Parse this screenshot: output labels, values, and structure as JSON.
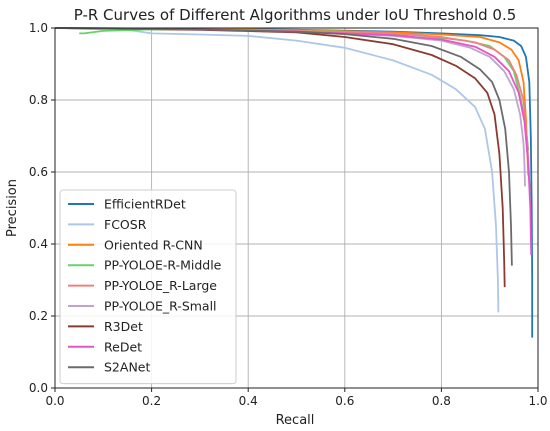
{
  "chart_data": {
    "type": "line",
    "title": "P-R Curves of Different Algorithms under IoU Threshold 0.5",
    "xlabel": "Recall",
    "ylabel": "Precision",
    "xlim": [
      0.0,
      1.0
    ],
    "ylim": [
      0.0,
      1.0
    ],
    "xticks": [
      "0.0",
      "0.2",
      "0.4",
      "0.6",
      "0.8",
      "1.0"
    ],
    "yticks": [
      "0.0",
      "0.2",
      "0.4",
      "0.6",
      "0.8",
      "1.0"
    ],
    "grid": true,
    "legend_position": "lower-left",
    "series": [
      {
        "name": "EfficientRDet",
        "color": "#1f77b4",
        "points": [
          [
            0.0,
            1.0
          ],
          [
            0.3,
            0.998
          ],
          [
            0.5,
            0.995
          ],
          [
            0.7,
            0.99
          ],
          [
            0.8,
            0.985
          ],
          [
            0.88,
            0.98
          ],
          [
            0.92,
            0.975
          ],
          [
            0.95,
            0.965
          ],
          [
            0.965,
            0.95
          ],
          [
            0.975,
            0.92
          ],
          [
            0.982,
            0.85
          ],
          [
            0.985,
            0.7
          ],
          [
            0.987,
            0.5
          ],
          [
            0.988,
            0.3
          ],
          [
            0.988,
            0.14
          ]
        ]
      },
      {
        "name": "FCOSR",
        "color": "#aec7e8",
        "points": [
          [
            0.0,
            1.0
          ],
          [
            0.15,
            0.995
          ],
          [
            0.2,
            0.985
          ],
          [
            0.3,
            0.982
          ],
          [
            0.4,
            0.978
          ],
          [
            0.5,
            0.965
          ],
          [
            0.6,
            0.945
          ],
          [
            0.7,
            0.91
          ],
          [
            0.78,
            0.87
          ],
          [
            0.83,
            0.83
          ],
          [
            0.87,
            0.78
          ],
          [
            0.89,
            0.72
          ],
          [
            0.905,
            0.6
          ],
          [
            0.913,
            0.45
          ],
          [
            0.917,
            0.3
          ],
          [
            0.918,
            0.21
          ]
        ]
      },
      {
        "name": "Oriented R-CNN",
        "color": "#ff7f0e",
        "points": [
          [
            0.0,
            1.0
          ],
          [
            0.3,
            0.998
          ],
          [
            0.5,
            0.994
          ],
          [
            0.7,
            0.988
          ],
          [
            0.8,
            0.982
          ],
          [
            0.88,
            0.975
          ],
          [
            0.92,
            0.96
          ],
          [
            0.945,
            0.94
          ],
          [
            0.96,
            0.91
          ],
          [
            0.97,
            0.85
          ],
          [
            0.975,
            0.75
          ],
          [
            0.978,
            0.65
          ],
          [
            0.98,
            0.59
          ]
        ]
      },
      {
        "name": "PP-YOLOE-R-Middle",
        "color": "#66d36a",
        "points": [
          [
            0.05,
            0.985
          ],
          [
            0.06,
            0.985
          ],
          [
            0.1,
            0.992
          ],
          [
            0.2,
            0.996
          ],
          [
            0.4,
            0.995
          ],
          [
            0.6,
            0.99
          ],
          [
            0.75,
            0.98
          ],
          [
            0.85,
            0.965
          ],
          [
            0.9,
            0.95
          ],
          [
            0.93,
            0.92
          ],
          [
            0.95,
            0.88
          ],
          [
            0.965,
            0.8
          ],
          [
            0.975,
            0.72
          ],
          [
            0.98,
            0.66
          ]
        ]
      },
      {
        "name": "PP-YOLOE_R-Large",
        "color": "#f08080",
        "points": [
          [
            0.0,
            1.0
          ],
          [
            0.3,
            0.997
          ],
          [
            0.5,
            0.992
          ],
          [
            0.7,
            0.985
          ],
          [
            0.8,
            0.975
          ],
          [
            0.87,
            0.96
          ],
          [
            0.91,
            0.94
          ],
          [
            0.94,
            0.91
          ],
          [
            0.955,
            0.87
          ],
          [
            0.97,
            0.8
          ],
          [
            0.978,
            0.68
          ],
          [
            0.983,
            0.55
          ]
        ]
      },
      {
        "name": "PP-YOLOE_R-Small",
        "color": "#c0a4cf",
        "points": [
          [
            0.0,
            1.0
          ],
          [
            0.3,
            0.996
          ],
          [
            0.5,
            0.99
          ],
          [
            0.7,
            0.978
          ],
          [
            0.8,
            0.965
          ],
          [
            0.86,
            0.945
          ],
          [
            0.9,
            0.92
          ],
          [
            0.93,
            0.88
          ],
          [
            0.95,
            0.83
          ],
          [
            0.963,
            0.76
          ],
          [
            0.97,
            0.68
          ],
          [
            0.972,
            0.62
          ],
          [
            0.973,
            0.56
          ]
        ]
      },
      {
        "name": "R3Det",
        "color": "#8b3a30",
        "points": [
          [
            0.0,
            1.0
          ],
          [
            0.3,
            0.995
          ],
          [
            0.5,
            0.988
          ],
          [
            0.6,
            0.975
          ],
          [
            0.7,
            0.955
          ],
          [
            0.78,
            0.925
          ],
          [
            0.83,
            0.895
          ],
          [
            0.87,
            0.86
          ],
          [
            0.895,
            0.82
          ],
          [
            0.91,
            0.76
          ],
          [
            0.92,
            0.65
          ],
          [
            0.927,
            0.5
          ],
          [
            0.93,
            0.35
          ],
          [
            0.931,
            0.28
          ]
        ]
      },
      {
        "name": "ReDet",
        "color": "#e754c8",
        "points": [
          [
            0.0,
            1.0
          ],
          [
            0.3,
            0.996
          ],
          [
            0.5,
            0.99
          ],
          [
            0.7,
            0.98
          ],
          [
            0.8,
            0.968
          ],
          [
            0.87,
            0.948
          ],
          [
            0.91,
            0.92
          ],
          [
            0.94,
            0.88
          ],
          [
            0.96,
            0.82
          ],
          [
            0.972,
            0.74
          ],
          [
            0.98,
            0.62
          ],
          [
            0.984,
            0.5
          ],
          [
            0.986,
            0.37
          ]
        ]
      },
      {
        "name": "S2ANet",
        "color": "#6b6b6b",
        "points": [
          [
            0.0,
            1.0
          ],
          [
            0.3,
            0.996
          ],
          [
            0.5,
            0.99
          ],
          [
            0.6,
            0.983
          ],
          [
            0.7,
            0.97
          ],
          [
            0.78,
            0.95
          ],
          [
            0.84,
            0.92
          ],
          [
            0.88,
            0.885
          ],
          [
            0.905,
            0.85
          ],
          [
            0.92,
            0.8
          ],
          [
            0.932,
            0.72
          ],
          [
            0.94,
            0.6
          ],
          [
            0.944,
            0.45
          ],
          [
            0.946,
            0.34
          ]
        ]
      }
    ]
  }
}
